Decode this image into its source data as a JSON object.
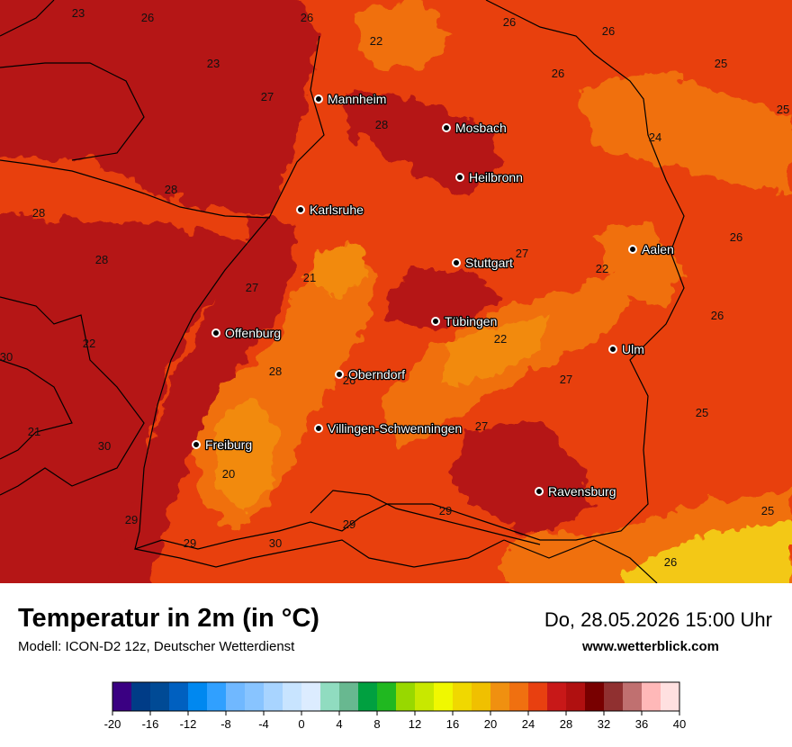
{
  "title": "Temperatur in 2m (in °C)",
  "model": "Modell: ICON-D2 12z, Deutscher Wetterdienst",
  "datetime": "Do, 28.05.2026 15:00 Uhr",
  "website": "www.wetterblick.com",
  "cities": [
    {
      "name": "Mannheim"
    },
    {
      "name": "Mosbach"
    },
    {
      "name": "Heilbronn"
    },
    {
      "name": "Karlsruhe"
    },
    {
      "name": "Stuttgart"
    },
    {
      "name": "Aalen"
    },
    {
      "name": "Tübingen"
    },
    {
      "name": "Offenburg"
    },
    {
      "name": "Ulm"
    },
    {
      "name": "Oberndorf"
    },
    {
      "name": "Villingen-Schwenningen"
    },
    {
      "name": "Freiburg"
    },
    {
      "name": "Ravensburg"
    }
  ],
  "temperature_labels": [
    "23",
    "26",
    "26",
    "22",
    "26",
    "26",
    "25",
    "23",
    "26",
    "27",
    "25",
    "28",
    "24",
    "28",
    "28",
    "28",
    "26",
    "21",
    "27",
    "22",
    "26",
    "27",
    "22",
    "30",
    "22",
    "28",
    "26",
    "27",
    "21",
    "30",
    "27",
    "25",
    "20",
    "29",
    "29",
    "29",
    "29",
    "30",
    "25",
    "26"
  ],
  "colorscale": {
    "ticks": [
      "-20",
      "-16",
      "-12",
      "-8",
      "-4",
      "0",
      "4",
      "8",
      "12",
      "16",
      "20",
      "24",
      "28",
      "32",
      "36",
      "40"
    ],
    "colors": [
      "#3a0082",
      "#003c87",
      "#004a95",
      "#0060c0",
      "#0088f0",
      "#30a0ff",
      "#70b8ff",
      "#88c4ff",
      "#a8d4ff",
      "#c8e4ff",
      "#dcecff",
      "#90dcc0",
      "#68b890",
      "#00a040",
      "#20b820",
      "#98d800",
      "#c8e800",
      "#f0f800",
      "#f0d800",
      "#f0c000",
      "#f09010",
      "#f07010",
      "#e84010",
      "#c81818",
      "#b01010",
      "#780000",
      "#903030",
      "#c07070",
      "#ffb8b8",
      "#ffe0e0"
    ]
  },
  "colors": {
    "dark_red": "#b51513",
    "red": "#e8400d",
    "orange": "#f0700c",
    "light_orange": "#f28a10",
    "yellow": "#f3c814"
  }
}
